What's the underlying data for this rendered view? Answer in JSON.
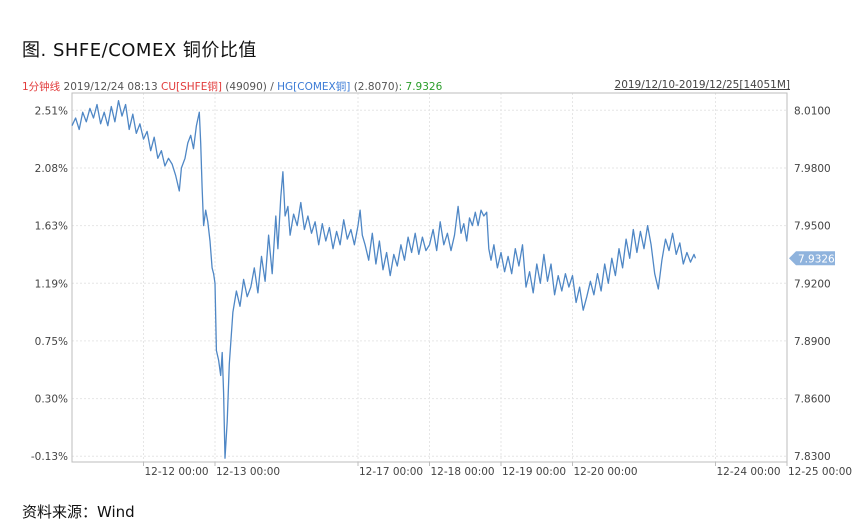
{
  "figure_title": "图. SHFE/COMEX 铜价比值",
  "header": {
    "frequency": "1分钟线",
    "datetime": "2019/12/24 08:13",
    "series1_label": "CU[SHFE铜]",
    "series1_value": "(49090)",
    "separator": "/",
    "series2_label": "HG[COMEX铜]",
    "series2_value": "(2.8070)",
    "ratio_value": ": 7.9326",
    "range": "2019/12/10-2019/12/25[14051M]"
  },
  "source": "资料来源：Wind",
  "colors": {
    "line": "#4f87c5",
    "grid": "#e6e6e6",
    "axis": "#bdbdbd",
    "last_tag": "#8fb3dd"
  },
  "chart_data": {
    "type": "line",
    "title": "",
    "xlabel": "",
    "ylabel": "",
    "y_left_ticks": [
      "2.51%",
      "2.08%",
      "1.63%",
      "1.19%",
      "0.75%",
      "0.30%",
      "-0.13%"
    ],
    "y_right_ticks": [
      "8.0100",
      "7.9800",
      "7.9500",
      "7.9200",
      "7.8900",
      "7.8600",
      "7.8300"
    ],
    "ylim": [
      7.827,
      8.019
    ],
    "x_ticks": [
      {
        "label": "12-12 00:00",
        "x": 1
      },
      {
        "label": "12-13 00:00",
        "x": 2
      },
      {
        "label": "12-17 00:00",
        "x": 4
      },
      {
        "label": "12-18 00:00",
        "x": 5
      },
      {
        "label": "12-19 00:00",
        "x": 6
      },
      {
        "label": "12-20 00:00",
        "x": 7
      },
      {
        "label": "12-24 00:00",
        "x": 9
      },
      {
        "label": "12-25 00:00",
        "x": 10
      }
    ],
    "xlim": [
      0,
      10
    ],
    "last_value_label": "7.9326",
    "series": [
      {
        "values": [
          [
            0.0,
            8.002
          ],
          [
            0.05,
            8.006
          ],
          [
            0.1,
            8.0
          ],
          [
            0.15,
            8.009
          ],
          [
            0.2,
            8.004
          ],
          [
            0.25,
            8.011
          ],
          [
            0.3,
            8.006
          ],
          [
            0.35,
            8.013
          ],
          [
            0.4,
            8.003
          ],
          [
            0.45,
            8.009
          ],
          [
            0.5,
            8.002
          ],
          [
            0.55,
            8.012
          ],
          [
            0.6,
            8.004
          ],
          [
            0.65,
            8.015
          ],
          [
            0.7,
            8.007
          ],
          [
            0.75,
            8.013
          ],
          [
            0.8,
            8.0
          ],
          [
            0.85,
            8.008
          ],
          [
            0.9,
            7.998
          ],
          [
            0.95,
            8.003
          ],
          [
            1.0,
            7.995
          ],
          [
            1.05,
            7.999
          ],
          [
            1.1,
            7.989
          ],
          [
            1.15,
            7.996
          ],
          [
            1.2,
            7.985
          ],
          [
            1.25,
            7.989
          ],
          [
            1.3,
            7.981
          ],
          [
            1.35,
            7.985
          ],
          [
            1.4,
            7.982
          ],
          [
            1.45,
            7.976
          ],
          [
            1.5,
            7.968
          ],
          [
            1.53,
            7.98
          ],
          [
            1.58,
            7.985
          ],
          [
            1.62,
            7.993
          ],
          [
            1.66,
            7.997
          ],
          [
            1.7,
            7.99
          ],
          [
            1.74,
            8.002
          ],
          [
            1.78,
            8.009
          ],
          [
            1.8,
            7.993
          ],
          [
            1.82,
            7.97
          ],
          [
            1.84,
            7.95
          ],
          [
            1.87,
            7.958
          ],
          [
            1.9,
            7.952
          ],
          [
            1.93,
            7.942
          ],
          [
            1.96,
            7.928
          ],
          [
            1.98,
            7.925
          ],
          [
            2.0,
            7.92
          ],
          [
            2.02,
            7.885
          ],
          [
            2.05,
            7.88
          ],
          [
            2.08,
            7.872
          ],
          [
            2.1,
            7.884
          ],
          [
            2.12,
            7.863
          ],
          [
            2.14,
            7.829
          ],
          [
            2.17,
            7.848
          ],
          [
            2.2,
            7.878
          ],
          [
            2.25,
            7.905
          ],
          [
            2.3,
            7.916
          ],
          [
            2.35,
            7.908
          ],
          [
            2.4,
            7.922
          ],
          [
            2.45,
            7.913
          ],
          [
            2.5,
            7.918
          ],
          [
            2.55,
            7.928
          ],
          [
            2.6,
            7.915
          ],
          [
            2.65,
            7.934
          ],
          [
            2.7,
            7.921
          ],
          [
            2.75,
            7.945
          ],
          [
            2.8,
            7.925
          ],
          [
            2.85,
            7.955
          ],
          [
            2.88,
            7.938
          ],
          [
            2.92,
            7.965
          ],
          [
            2.95,
            7.978
          ],
          [
            2.98,
            7.955
          ],
          [
            3.02,
            7.96
          ],
          [
            3.05,
            7.945
          ],
          [
            3.1,
            7.956
          ],
          [
            3.15,
            7.95
          ],
          [
            3.2,
            7.962
          ],
          [
            3.25,
            7.948
          ],
          [
            3.3,
            7.955
          ],
          [
            3.35,
            7.946
          ],
          [
            3.4,
            7.952
          ],
          [
            3.45,
            7.94
          ],
          [
            3.5,
            7.951
          ],
          [
            3.55,
            7.942
          ],
          [
            3.6,
            7.949
          ],
          [
            3.65,
            7.938
          ],
          [
            3.7,
            7.947
          ],
          [
            3.75,
            7.94
          ],
          [
            3.8,
            7.953
          ],
          [
            3.85,
            7.943
          ],
          [
            3.9,
            7.948
          ],
          [
            3.95,
            7.94
          ],
          [
            4.0,
            7.95
          ],
          [
            4.03,
            7.958
          ],
          [
            4.06,
            7.945
          ],
          [
            4.1,
            7.94
          ],
          [
            4.15,
            7.932
          ],
          [
            4.2,
            7.946
          ],
          [
            4.25,
            7.93
          ],
          [
            4.3,
            7.942
          ],
          [
            4.35,
            7.927
          ],
          [
            4.4,
            7.936
          ],
          [
            4.45,
            7.924
          ],
          [
            4.5,
            7.935
          ],
          [
            4.55,
            7.929
          ],
          [
            4.6,
            7.94
          ],
          [
            4.65,
            7.932
          ],
          [
            4.7,
            7.944
          ],
          [
            4.75,
            7.936
          ],
          [
            4.8,
            7.946
          ],
          [
            4.85,
            7.935
          ],
          [
            4.9,
            7.944
          ],
          [
            4.95,
            7.937
          ],
          [
            5.0,
            7.94
          ],
          [
            5.05,
            7.948
          ],
          [
            5.1,
            7.937
          ],
          [
            5.15,
            7.952
          ],
          [
            5.2,
            7.94
          ],
          [
            5.25,
            7.946
          ],
          [
            5.3,
            7.937
          ],
          [
            5.35,
            7.945
          ],
          [
            5.4,
            7.96
          ],
          [
            5.44,
            7.946
          ],
          [
            5.48,
            7.951
          ],
          [
            5.52,
            7.942
          ],
          [
            5.56,
            7.954
          ],
          [
            5.6,
            7.95
          ],
          [
            5.64,
            7.957
          ],
          [
            5.68,
            7.95
          ],
          [
            5.72,
            7.958
          ],
          [
            5.76,
            7.955
          ],
          [
            5.8,
            7.957
          ],
          [
            5.83,
            7.938
          ],
          [
            5.86,
            7.932
          ],
          [
            5.9,
            7.94
          ],
          [
            5.95,
            7.928
          ],
          [
            6.0,
            7.936
          ],
          [
            6.05,
            7.926
          ],
          [
            6.1,
            7.934
          ],
          [
            6.15,
            7.925
          ],
          [
            6.2,
            7.938
          ],
          [
            6.25,
            7.929
          ],
          [
            6.3,
            7.94
          ],
          [
            6.35,
            7.918
          ],
          [
            6.4,
            7.926
          ],
          [
            6.45,
            7.915
          ],
          [
            6.5,
            7.93
          ],
          [
            6.55,
            7.92
          ],
          [
            6.6,
            7.935
          ],
          [
            6.65,
            7.921
          ],
          [
            6.7,
            7.93
          ],
          [
            6.75,
            7.914
          ],
          [
            6.8,
            7.924
          ],
          [
            6.85,
            7.916
          ],
          [
            6.9,
            7.925
          ],
          [
            6.95,
            7.918
          ],
          [
            7.0,
            7.924
          ],
          [
            7.05,
            7.91
          ],
          [
            7.1,
            7.918
          ],
          [
            7.15,
            7.906
          ],
          [
            7.2,
            7.913
          ],
          [
            7.25,
            7.921
          ],
          [
            7.3,
            7.914
          ],
          [
            7.35,
            7.925
          ],
          [
            7.4,
            7.916
          ],
          [
            7.45,
            7.93
          ],
          [
            7.5,
            7.92
          ],
          [
            7.55,
            7.933
          ],
          [
            7.6,
            7.924
          ],
          [
            7.65,
            7.938
          ],
          [
            7.7,
            7.928
          ],
          [
            7.75,
            7.943
          ],
          [
            7.8,
            7.933
          ],
          [
            7.85,
            7.948
          ],
          [
            7.9,
            7.936
          ],
          [
            7.95,
            7.947
          ],
          [
            8.0,
            7.938
          ],
          [
            8.05,
            7.95
          ],
          [
            8.1,
            7.94
          ],
          [
            8.15,
            7.925
          ],
          [
            8.2,
            7.917
          ],
          [
            8.25,
            7.932
          ],
          [
            8.3,
            7.943
          ],
          [
            8.35,
            7.937
          ],
          [
            8.4,
            7.946
          ],
          [
            8.45,
            7.935
          ],
          [
            8.5,
            7.941
          ],
          [
            8.55,
            7.93
          ],
          [
            8.6,
            7.936
          ],
          [
            8.65,
            7.931
          ],
          [
            8.7,
            7.935
          ],
          [
            8.72,
            7.933
          ]
        ]
      }
    ]
  }
}
